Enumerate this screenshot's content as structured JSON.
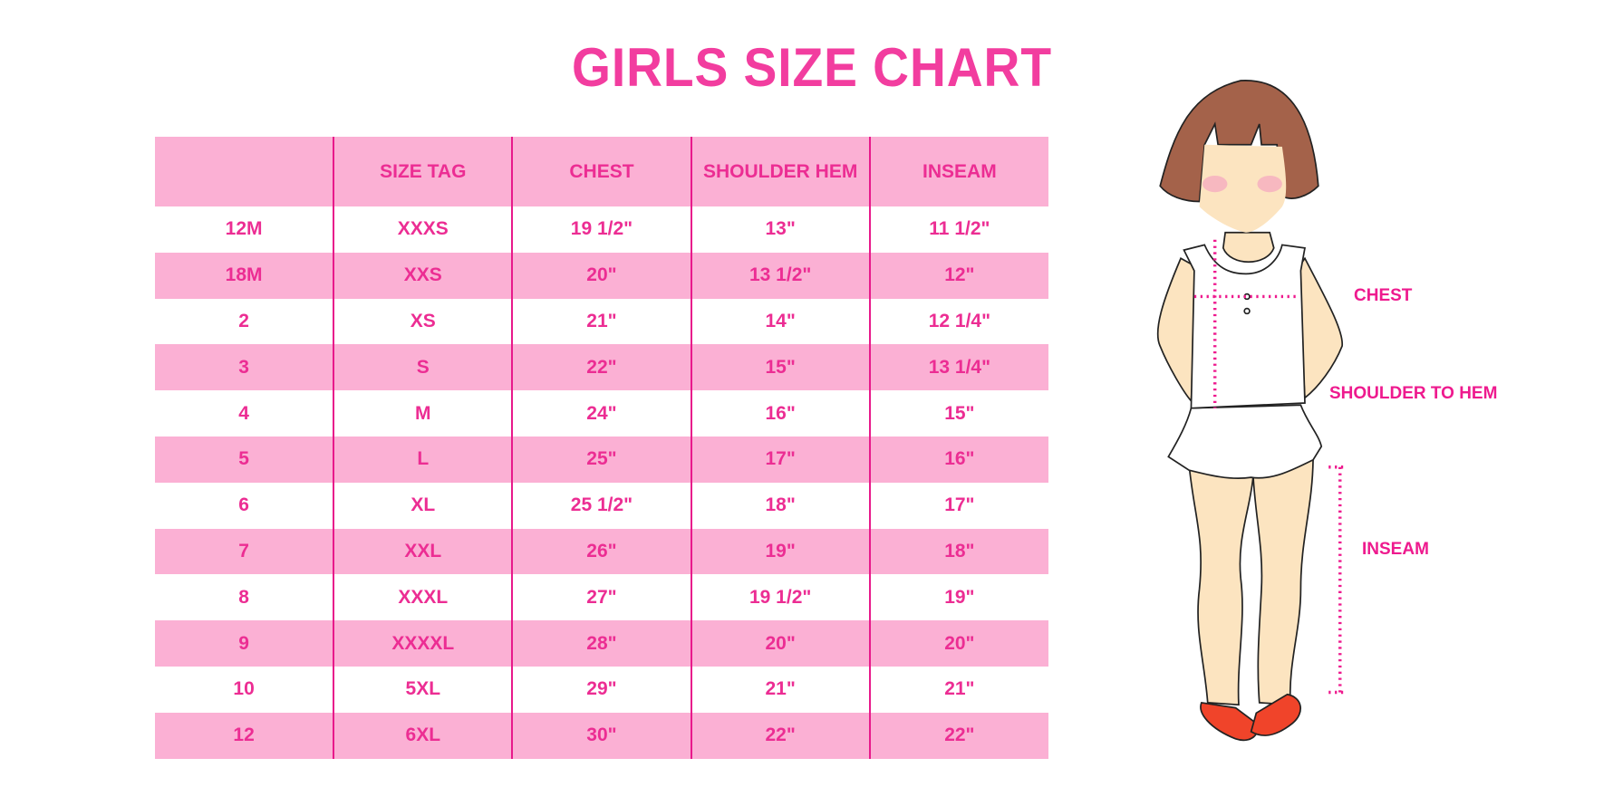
{
  "title": "GIRLS SIZE CHART",
  "table": {
    "headers": [
      "",
      "SIZE TAG",
      "CHEST",
      "SHOULDER HEM",
      "INSEAM"
    ],
    "rows": [
      [
        "12M",
        "XXXS",
        "19 1/2\"",
        "13\"",
        "11 1/2\""
      ],
      [
        "18M",
        "XXS",
        "20\"",
        "13 1/2\"",
        "12\""
      ],
      [
        "2",
        "XS",
        "21\"",
        "14\"",
        "12 1/4\""
      ],
      [
        "3",
        "S",
        "22\"",
        "15\"",
        "13 1/4\""
      ],
      [
        "4",
        "M",
        "24\"",
        "16\"",
        "15\""
      ],
      [
        "5",
        "L",
        "25\"",
        "17\"",
        "16\""
      ],
      [
        "6",
        "XL",
        "25 1/2\"",
        "18\"",
        "17\""
      ],
      [
        "7",
        "XXL",
        "26\"",
        "19\"",
        "18\""
      ],
      [
        "8",
        "XXXL",
        "27\"",
        "19 1/2\"",
        "19\""
      ],
      [
        "9",
        "XXXXL",
        "28\"",
        "20\"",
        "20\""
      ],
      [
        "10",
        "5XL",
        "29\"",
        "21\"",
        "21\""
      ],
      [
        "12",
        "6XL",
        "30\"",
        "22\"",
        "22\""
      ]
    ]
  },
  "figure": {
    "labels": {
      "chest": "CHEST",
      "shoulder_to_hem": "SHOULDER TO HEM",
      "inseam": "INSEAM"
    }
  },
  "colors": {
    "accent": "#ec2d93",
    "header_bg": "#fbb0d4",
    "divider": "#e8198b"
  }
}
